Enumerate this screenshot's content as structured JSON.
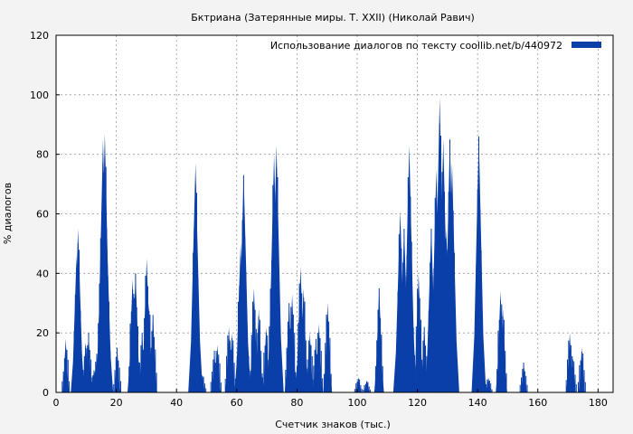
{
  "chart_data": {
    "type": "area",
    "title": "Бктриана (Затерянные миры. Т. XXII) (Николай Равич)",
    "xlabel": "Счетчик знаков (тыс.)",
    "ylabel": "% диалогов",
    "xlim": [
      0,
      185
    ],
    "ylim": [
      0,
      120
    ],
    "xticks": [
      "0",
      "20",
      "40",
      "60",
      "80",
      "100",
      "120",
      "140",
      "160",
      "180"
    ],
    "yticks": [
      "0",
      "20",
      "40",
      "60",
      "80",
      "100",
      "120"
    ],
    "grid": true,
    "legend_position": "top-right",
    "series": [
      {
        "name": "Использование диалогов по тексту  coollib.net/b/440972",
        "color": "#0a3fa8",
        "peaks": [
          [
            3.2,
            18
          ],
          [
            6.8,
            46
          ],
          [
            7.3,
            55
          ],
          [
            9.8,
            17
          ],
          [
            10.8,
            20
          ],
          [
            12.6,
            8
          ],
          [
            13.5,
            13
          ],
          [
            14.8,
            42
          ],
          [
            15.6,
            85
          ],
          [
            16.2,
            87
          ],
          [
            16.8,
            55
          ],
          [
            20.3,
            15
          ],
          [
            25.4,
            38
          ],
          [
            26.4,
            40
          ],
          [
            28.6,
            20
          ],
          [
            30.1,
            45
          ],
          [
            30.8,
            30
          ],
          [
            32.2,
            26
          ],
          [
            46.3,
            77
          ],
          [
            48.6,
            6
          ],
          [
            52.6,
            14
          ],
          [
            53.6,
            16
          ],
          [
            57.4,
            22
          ],
          [
            58.4,
            20
          ],
          [
            61.3,
            50
          ],
          [
            62.3,
            73
          ],
          [
            63.2,
            20
          ],
          [
            65.7,
            35
          ],
          [
            67.3,
            28
          ],
          [
            69.8,
            22
          ],
          [
            71.6,
            40
          ],
          [
            72.4,
            80
          ],
          [
            73.2,
            83
          ],
          [
            77.4,
            30
          ],
          [
            78.4,
            33
          ],
          [
            81.2,
            42
          ],
          [
            82.2,
            35
          ],
          [
            84.3,
            20
          ],
          [
            86.3,
            18
          ],
          [
            87.3,
            23
          ],
          [
            90.2,
            30
          ],
          [
            100.4,
            5
          ],
          [
            103.2,
            4
          ],
          [
            107.3,
            35
          ],
          [
            114.3,
            61
          ],
          [
            115.6,
            55
          ],
          [
            117.3,
            83
          ],
          [
            118.3,
            25
          ],
          [
            120.4,
            40
          ],
          [
            122.3,
            22
          ],
          [
            124.6,
            55
          ],
          [
            126.3,
            75
          ],
          [
            127.4,
            99
          ],
          [
            128.6,
            85
          ],
          [
            129.6,
            55
          ],
          [
            130.8,
            85
          ],
          [
            131.5,
            77
          ],
          [
            140.4,
            86
          ],
          [
            143.6,
            5
          ],
          [
            147.6,
            34
          ],
          [
            148.4,
            28
          ],
          [
            155.3,
            10
          ],
          [
            170.6,
            20
          ],
          [
            171.6,
            12
          ],
          [
            174.6,
            15
          ]
        ]
      }
    ]
  }
}
